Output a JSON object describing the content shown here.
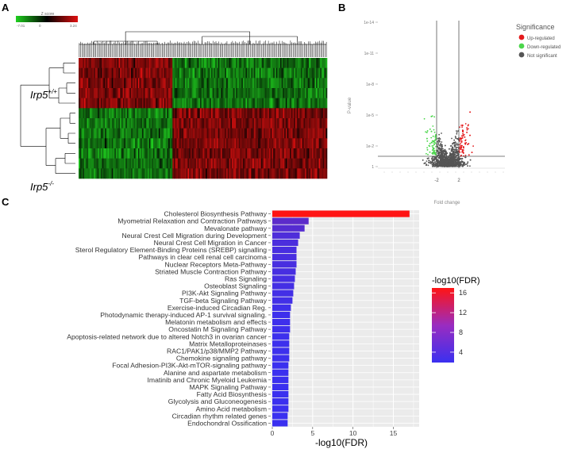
{
  "panel_labels": [
    "A",
    "B",
    "C"
  ],
  "chart_data": [
    {
      "type": "heatmap",
      "panel": "A",
      "colorbar": {
        "title": "Z score",
        "min_label": "-7.01",
        "mid_label": "0",
        "max_label": "3.24",
        "colors": [
          "#1fd01f",
          "#000000",
          "#e01010"
        ]
      },
      "row_groups": [
        {
          "label": "Irp5",
          "superscript": "+/+",
          "rows": 5
        },
        {
          "label": "Irp5",
          "superscript": "-/-",
          "rows": 7
        }
      ],
      "column_count": 180,
      "column_cluster_split_fraction": 0.38,
      "pattern": "Irp5+/+ rows high in left column cluster, low in right; Irp5-/- rows the reverse"
    },
    {
      "type": "scatter",
      "panel": "B",
      "title": "",
      "xlabel": "Fold change",
      "ylabel": "P-value",
      "y_ticks": [
        "1",
        "1e-2",
        "1e-5",
        "1e-8",
        "1e-11",
        "1e-14"
      ],
      "x_ticks": [
        "-2",
        "2"
      ],
      "thresholds": {
        "x": [
          -2,
          2
        ],
        "y": "1e-1"
      },
      "legend": {
        "title": "Significance",
        "position": "right",
        "entries": [
          {
            "label": "Up-regulated",
            "color": "#e41a1c"
          },
          {
            "label": "Down-regulated",
            "color": "#4cd64c"
          },
          {
            "label": "Not significant",
            "color": "#555555"
          }
        ]
      }
    },
    {
      "type": "bar",
      "panel": "C",
      "orientation": "horizontal",
      "xlabel": "-log10(FDR)",
      "ylabel": "",
      "xlim": [
        0,
        18
      ],
      "x_ticks": [
        0,
        5,
        10,
        15
      ],
      "grid": true,
      "categories": [
        "Cholesterol Biosynthesis Pathway",
        "Myometrial Relaxation and Contraction Pathways",
        "Mevalonate pathway",
        "Neural Crest Cell Migration during Development",
        "Neural Crest Cell Migration in Cancer",
        "Sterol Regulatory Element-Binding Proteins (SREBP) signalling",
        "Pathways in clear cell renal cell carcinoma",
        "Nuclear Receptors Meta-Pathway",
        "Striated Muscle Contraction Pathway",
        "Ras Signaling",
        "Osteoblast Signaling",
        "PI3K-Akt Signaling Pathway",
        "TGF-beta Signaling Pathway",
        "Exercise-induced Circadian Reg.",
        "Photodynamic therapy-induced AP-1 survival signaling.",
        "Melatonin metabolism and effects",
        "Oncostatin M Signaling Pathway",
        "Apoptosis-related network due to altered Notch3 in ovarian cancer",
        "Matrix Metalloproteinases",
        "RAC1/PAK1/p38/MMP2 Pathway",
        "Chemokine signaling pathway",
        "Focal Adhesion-PI3K-Akt-mTOR-signaling pathway",
        "Alanine and aspartate metabolism",
        "Imatinib and Chronic Myeloid Leukemia",
        "MAPK Signaling Pathway",
        "Fatty Acid Biosynthesis",
        "Glycolysis and Gluconeogenesis",
        "Amino Acid metabolism",
        "Circadian rhythm related genes",
        "Endochondral Ossification"
      ],
      "values": [
        17.0,
        4.5,
        4.0,
        3.4,
        3.2,
        3.0,
        3.0,
        3.0,
        2.9,
        2.8,
        2.7,
        2.6,
        2.5,
        2.3,
        2.2,
        2.2,
        2.2,
        2.1,
        2.1,
        2.1,
        2.1,
        2.0,
        2.0,
        2.0,
        2.0,
        2.0,
        2.0,
        2.0,
        1.9,
        1.9
      ],
      "color_scale": {
        "title": "-log10(FDR)",
        "ticks": [
          4,
          8,
          12,
          16
        ],
        "min": 1.9,
        "max": 17.0,
        "low_color": "#3a30f0",
        "high_color": "#ff1414"
      }
    }
  ]
}
